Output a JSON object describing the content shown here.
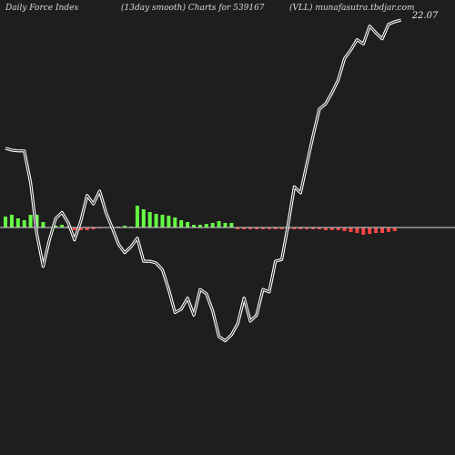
{
  "header": {
    "left": "Daily Force  Index",
    "middle": "(13day smooth) Charts for 539167",
    "right": "(VLL) munafasutra.tbdjar.com"
  },
  "colors": {
    "background": "#1e1e1e",
    "line": "#ffffff",
    "zero_line": "#b4b4b4",
    "bar_positive": "#66ff44",
    "bar_negative": "#ff4444"
  },
  "chart_data": {
    "type": "line",
    "title": "Daily Force Index (13day smooth)",
    "last_value_label": "22.07",
    "grid": false,
    "legend": "none",
    "line_series": [
      [
        0,
        250
      ],
      [
        1,
        248
      ],
      [
        2,
        247
      ],
      [
        3,
        247
      ],
      [
        4,
        210
      ],
      [
        5,
        150
      ],
      [
        6,
        112
      ],
      [
        7,
        143
      ],
      [
        8,
        168
      ],
      [
        9,
        175
      ],
      [
        10,
        163
      ],
      [
        11,
        143
      ],
      [
        12,
        165
      ],
      [
        13,
        195
      ],
      [
        14,
        185
      ],
      [
        15,
        200
      ],
      [
        16,
        175
      ],
      [
        17,
        157
      ],
      [
        18,
        138
      ],
      [
        19,
        128
      ],
      [
        20,
        135
      ],
      [
        21,
        145
      ],
      [
        22,
        118
      ],
      [
        23,
        118
      ],
      [
        24,
        116
      ],
      [
        25,
        108
      ],
      [
        26,
        85
      ],
      [
        27,
        58
      ],
      [
        28,
        62
      ],
      [
        29,
        75
      ],
      [
        30,
        55
      ],
      [
        31,
        85
      ],
      [
        32,
        80
      ],
      [
        33,
        60
      ],
      [
        34,
        30
      ],
      [
        35,
        25
      ],
      [
        36,
        32
      ],
      [
        37,
        45
      ],
      [
        38,
        75
      ],
      [
        39,
        48
      ],
      [
        40,
        55
      ],
      [
        41,
        85
      ],
      [
        42,
        82
      ],
      [
        43,
        118
      ],
      [
        44,
        120
      ],
      [
        45,
        160
      ],
      [
        46,
        205
      ],
      [
        47,
        198
      ],
      [
        48,
        232
      ],
      [
        49,
        265
      ],
      [
        50,
        296
      ],
      [
        51,
        302
      ],
      [
        52,
        315
      ],
      [
        53,
        330
      ],
      [
        54,
        355
      ],
      [
        55,
        365
      ],
      [
        56,
        377
      ],
      [
        57,
        372
      ],
      [
        58,
        393
      ],
      [
        59,
        385
      ],
      [
        60,
        378
      ],
      [
        61,
        395
      ],
      [
        62,
        398
      ],
      [
        63,
        400
      ]
    ],
    "bars": [
      [
        0,
        12
      ],
      [
        1,
        14
      ],
      [
        2,
        10
      ],
      [
        3,
        8
      ],
      [
        4,
        14
      ],
      [
        5,
        14
      ],
      [
        6,
        6
      ],
      [
        7,
        0
      ],
      [
        8,
        2
      ],
      [
        9,
        3
      ],
      [
        10,
        1
      ],
      [
        11,
        -3
      ],
      [
        12,
        -3
      ],
      [
        13,
        -3
      ],
      [
        14,
        -2
      ],
      [
        15,
        -1
      ],
      [
        16,
        0
      ],
      [
        17,
        0
      ],
      [
        18,
        1
      ],
      [
        19,
        2
      ],
      [
        20,
        1
      ],
      [
        21,
        24
      ],
      [
        22,
        20
      ],
      [
        23,
        17
      ],
      [
        24,
        15
      ],
      [
        25,
        14
      ],
      [
        26,
        13
      ],
      [
        27,
        11
      ],
      [
        28,
        8
      ],
      [
        29,
        6
      ],
      [
        30,
        3
      ],
      [
        31,
        3
      ],
      [
        32,
        4
      ],
      [
        33,
        5
      ],
      [
        34,
        7
      ],
      [
        35,
        5
      ],
      [
        36,
        5
      ],
      [
        37,
        -2
      ],
      [
        38,
        -2
      ],
      [
        39,
        -2
      ],
      [
        40,
        -2
      ],
      [
        41,
        -2
      ],
      [
        42,
        -2
      ],
      [
        43,
        -2
      ],
      [
        44,
        -2
      ],
      [
        45,
        -2
      ],
      [
        46,
        -2
      ],
      [
        47,
        -2
      ],
      [
        48,
        -2
      ],
      [
        49,
        -2
      ],
      [
        50,
        -2
      ],
      [
        51,
        -3
      ],
      [
        52,
        -3
      ],
      [
        53,
        -3
      ],
      [
        54,
        -4
      ],
      [
        55,
        -5
      ],
      [
        56,
        -6
      ],
      [
        57,
        -8
      ],
      [
        58,
        -7
      ],
      [
        59,
        -6
      ],
      [
        60,
        -6
      ],
      [
        61,
        -5
      ],
      [
        62,
        -4
      ]
    ]
  }
}
